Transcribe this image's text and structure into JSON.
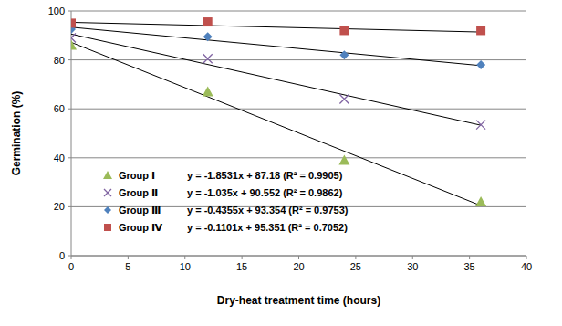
{
  "chart_data": {
    "type": "scatter",
    "x_label": "Dry-heat treatment time (hours)",
    "y_label": "Germination (%)",
    "x": [
      0,
      12,
      24,
      36
    ],
    "series": [
      {
        "name": "Group Ⅰ",
        "color": "#9bbb59",
        "marker": "triangle",
        "values": [
          86,
          67,
          39,
          22
        ],
        "trendline": {
          "slope": -1.8531,
          "intercept": 87.18,
          "label": "y = -1.8531x + 87.18 (R² = 0.9905)"
        }
      },
      {
        "name": "Group Ⅱ",
        "color": "#8064a2",
        "marker": "x",
        "values": [
          89,
          80.5,
          64,
          53.5
        ],
        "trendline": {
          "slope": -1.035,
          "intercept": 90.552,
          "label": "y = -1.035x + 90.552 (R² = 0.9862)"
        }
      },
      {
        "name": "Group Ⅲ",
        "color": "#4f81bd",
        "marker": "diamond",
        "values": [
          92.5,
          89.5,
          82,
          78
        ],
        "trendline": {
          "slope": -0.4355,
          "intercept": 93.354,
          "label": "y = -0.4355x + 93.354 (R² = 0.9753)"
        }
      },
      {
        "name": "Group Ⅳ",
        "color": "#c0504d",
        "marker": "square",
        "values": [
          95,
          95.5,
          92,
          92
        ],
        "trendline": {
          "slope": -0.1101,
          "intercept": 95.351,
          "label": "y = -0.1101x + 95.351 (R² = 0.7052)"
        }
      }
    ],
    "xlim": [
      0,
      40
    ],
    "xticks": [
      0,
      5,
      10,
      15,
      20,
      25,
      30,
      35,
      40
    ],
    "ylim": [
      0,
      100
    ],
    "yticks": [
      0,
      20,
      40,
      60,
      80,
      100
    ],
    "grid": true,
    "legend": "bottom-left"
  }
}
